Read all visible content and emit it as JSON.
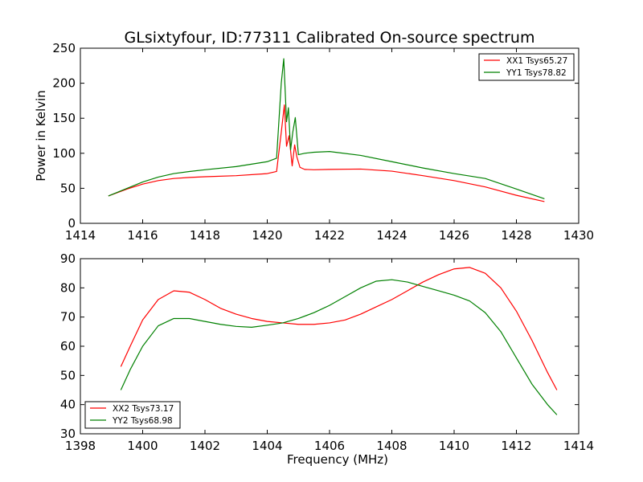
{
  "figure": {
    "title": "GLsixtyfour, ID:77311 Calibrated On-source spectrum",
    "xlabel": "Frequency (MHz)"
  },
  "colors": {
    "red": "#ff0000",
    "green": "#008000",
    "axes": "#000000",
    "background": "#ffffff"
  },
  "chart_data": [
    {
      "type": "line",
      "title": "GLsixtyfour, ID:77311 Calibrated On-source spectrum",
      "xlabel": "",
      "ylabel": "Power in Kelvin",
      "xlim": [
        1414,
        1430
      ],
      "ylim": [
        0,
        250
      ],
      "xticks": [
        1414,
        1416,
        1418,
        1420,
        1422,
        1424,
        1426,
        1428,
        1430
      ],
      "yticks": [
        0,
        50,
        100,
        150,
        200,
        250
      ],
      "grid": false,
      "legend_position": "top-right",
      "series": [
        {
          "name": "XX1 Tsys65.27",
          "color": "#ff0000",
          "x": [
            1414.9,
            1415.5,
            1416,
            1416.5,
            1417,
            1417.5,
            1418,
            1419,
            1420,
            1420.3,
            1420.45,
            1420.55,
            1420.62,
            1420.7,
            1420.8,
            1420.88,
            1420.95,
            1421.05,
            1421.2,
            1421.5,
            1422,
            1423,
            1424,
            1425,
            1426,
            1427,
            1428,
            1428.9
          ],
          "y": [
            39,
            49,
            56,
            61,
            64,
            65.5,
            66.5,
            68,
            71,
            74,
            130,
            169,
            110,
            125,
            82,
            112,
            95,
            80,
            77,
            76.5,
            77,
            77.5,
            74.5,
            68,
            61,
            52,
            40,
            31
          ]
        },
        {
          "name": "YY1 Tsys78.82",
          "color": "#008000",
          "x": [
            1414.9,
            1415.5,
            1416,
            1416.5,
            1417,
            1417.5,
            1418,
            1419,
            1420,
            1420.3,
            1420.45,
            1420.53,
            1420.62,
            1420.68,
            1420.75,
            1420.82,
            1420.9,
            1421,
            1421.2,
            1421.5,
            1422,
            1423,
            1424,
            1425,
            1426,
            1427,
            1428,
            1428.9
          ],
          "y": [
            39,
            50,
            59,
            66,
            71,
            74,
            76.5,
            81,
            88,
            93,
            200,
            235,
            145,
            165,
            105,
            130,
            151,
            98,
            100,
            101.5,
            102.5,
            97,
            88,
            79,
            71,
            64,
            49,
            35
          ]
        }
      ]
    },
    {
      "type": "line",
      "title": "",
      "xlabel": "Frequency (MHz)",
      "ylabel": "",
      "xlim": [
        1398,
        1414
      ],
      "ylim": [
        30,
        90
      ],
      "xticks": [
        1398,
        1400,
        1402,
        1404,
        1406,
        1408,
        1410,
        1412,
        1414
      ],
      "yticks": [
        30,
        40,
        50,
        60,
        70,
        80,
        90
      ],
      "grid": false,
      "legend_position": "bottom-left",
      "series": [
        {
          "name": "XX2 Tsys73.17",
          "color": "#ff0000",
          "x": [
            1399.3,
            1399.6,
            1400,
            1400.5,
            1401,
            1401.5,
            1402,
            1402.5,
            1403,
            1403.5,
            1404,
            1404.5,
            1405,
            1405.5,
            1406,
            1406.5,
            1407,
            1407.5,
            1408,
            1408.5,
            1409,
            1409.5,
            1410,
            1410.5,
            1411,
            1411.5,
            1412,
            1412.5,
            1413,
            1413.3
          ],
          "y": [
            53,
            60,
            69,
            76,
            79,
            78.5,
            76,
            73,
            71,
            69.5,
            68.5,
            68,
            67.5,
            67.5,
            68,
            69,
            71,
            73.5,
            76,
            79,
            82,
            84.5,
            86.5,
            87,
            85,
            80,
            72,
            62,
            51,
            45
          ]
        },
        {
          "name": "YY2 Tsys68.98",
          "color": "#008000",
          "x": [
            1399.3,
            1399.6,
            1400,
            1400.5,
            1401,
            1401.5,
            1402,
            1402.5,
            1403,
            1403.5,
            1404,
            1404.5,
            1405,
            1405.5,
            1406,
            1406.5,
            1407,
            1407.5,
            1408,
            1408.5,
            1409,
            1409.5,
            1410,
            1410.5,
            1411,
            1411.5,
            1412,
            1412.5,
            1413,
            1413.3
          ],
          "y": [
            45,
            52,
            60,
            67,
            69.5,
            69.5,
            68.5,
            67.5,
            66.8,
            66.5,
            67.2,
            68,
            69.5,
            71.5,
            74,
            77,
            80,
            82.3,
            82.8,
            82,
            80.5,
            79,
            77.5,
            75.5,
            71.5,
            65,
            56,
            47,
            40,
            36.5
          ]
        }
      ]
    }
  ]
}
